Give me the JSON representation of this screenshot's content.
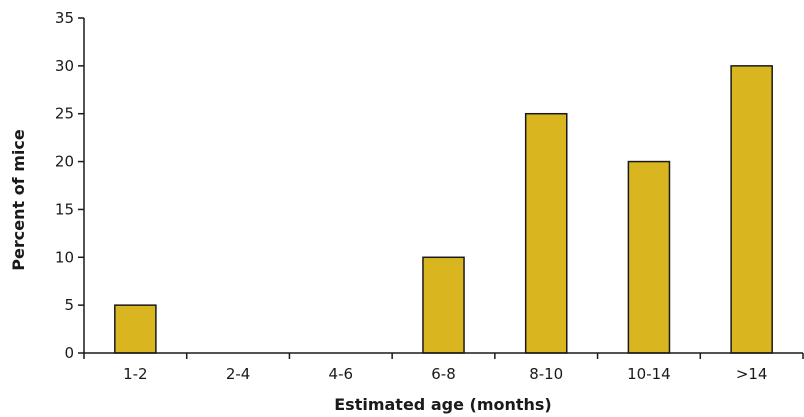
{
  "chart_data": {
    "type": "bar",
    "title": "",
    "xlabel": "Estimated age (months)",
    "ylabel": "Percent of mice",
    "categories": [
      "1-2",
      "2-4",
      "4-6",
      "6-8",
      "8-10",
      "10-14",
      ">14"
    ],
    "values": [
      5,
      0,
      0,
      10,
      25,
      20,
      30
    ],
    "ylim": [
      0,
      35
    ],
    "yticks": [
      0,
      5,
      10,
      15,
      20,
      25,
      30,
      35
    ],
    "grid": false,
    "bar_color": "#D9B61F"
  }
}
